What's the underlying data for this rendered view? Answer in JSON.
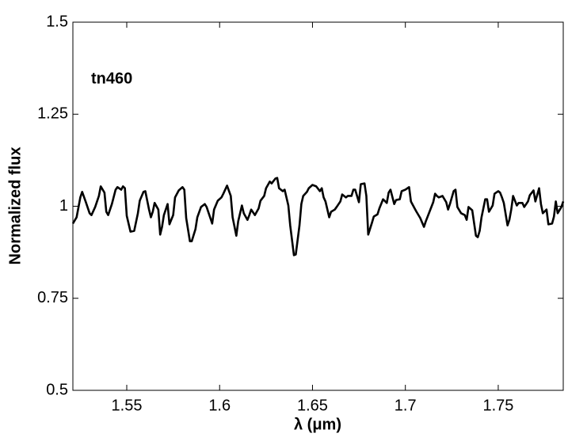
{
  "chart_data": {
    "type": "line",
    "annotation": "tn460",
    "xlabel": "λ (μm)",
    "ylabel": "Normalized flux",
    "xlim": [
      1.521,
      1.785
    ],
    "ylim": [
      0.5,
      1.5
    ],
    "xticks": [
      1.55,
      1.6,
      1.65,
      1.7,
      1.75
    ],
    "yticks": [
      0.5,
      0.75,
      1,
      1.25,
      1.5
    ],
    "x": [
      1.521,
      1.523,
      1.525,
      1.526,
      1.528,
      1.53,
      1.531,
      1.533,
      1.535,
      1.536,
      1.538,
      1.539,
      1.54,
      1.542,
      1.544,
      1.545,
      1.547,
      1.548,
      1.549,
      1.55,
      1.552,
      1.554,
      1.556,
      1.557,
      1.559,
      1.56,
      1.562,
      1.563,
      1.564,
      1.565,
      1.567,
      1.568,
      1.569,
      1.57,
      1.572,
      1.573,
      1.575,
      1.576,
      1.578,
      1.58,
      1.581,
      1.582,
      1.584,
      1.585,
      1.587,
      1.588,
      1.59,
      1.592,
      1.593,
      1.595,
      1.596,
      1.597,
      1.599,
      1.601,
      1.602,
      1.604,
      1.606,
      1.607,
      1.609,
      1.61,
      1.612,
      1.613,
      1.615,
      1.616,
      1.617,
      1.619,
      1.621,
      1.622,
      1.624,
      1.625,
      1.627,
      1.628,
      1.63,
      1.631,
      1.632,
      1.634,
      1.635,
      1.637,
      1.638,
      1.64,
      1.641,
      1.643,
      1.644,
      1.645,
      1.647,
      1.648,
      1.65,
      1.652,
      1.654,
      1.655,
      1.656,
      1.657,
      1.659,
      1.66,
      1.662,
      1.663,
      1.665,
      1.666,
      1.668,
      1.669,
      1.671,
      1.672,
      1.673,
      1.675,
      1.676,
      1.678,
      1.679,
      1.68,
      1.682,
      1.683,
      1.685,
      1.686,
      1.688,
      1.69,
      1.691,
      1.692,
      1.694,
      1.695,
      1.697,
      1.698,
      1.7,
      1.702,
      1.703,
      1.705,
      1.706,
      1.708,
      1.71,
      1.711,
      1.713,
      1.715,
      1.716,
      1.717,
      1.718,
      1.72,
      1.722,
      1.723,
      1.724,
      1.726,
      1.727,
      1.728,
      1.73,
      1.732,
      1.733,
      1.734,
      1.736,
      1.738,
      1.739,
      1.74,
      1.741,
      1.743,
      1.744,
      1.745,
      1.747,
      1.748,
      1.75,
      1.751,
      1.752,
      1.753,
      1.755,
      1.756,
      1.757,
      1.758,
      1.76,
      1.761,
      1.763,
      1.764,
      1.766,
      1.767,
      1.769,
      1.77,
      1.772,
      1.773,
      1.774,
      1.776,
      1.777,
      1.779,
      1.78,
      1.781,
      1.782,
      1.784,
      1.785
    ],
    "series": [
      {
        "color": "#000000",
        "values": [
          0.953,
          0.97,
          1.024,
          1.039,
          1.011,
          0.981,
          0.976,
          0.998,
          1.028,
          1.054,
          1.037,
          0.985,
          0.976,
          1.006,
          1.045,
          1.052,
          1.045,
          1.054,
          1.049,
          0.974,
          0.931,
          0.933,
          0.981,
          1.015,
          1.039,
          1.041,
          0.991,
          0.97,
          0.985,
          1.009,
          0.991,
          0.923,
          0.944,
          0.976,
          1.006,
          0.951,
          0.976,
          1.024,
          1.043,
          1.052,
          1.045,
          0.968,
          0.905,
          0.905,
          0.938,
          0.97,
          0.998,
          1.006,
          0.998,
          0.968,
          0.953,
          0.991,
          1.015,
          1.024,
          1.034,
          1.056,
          1.028,
          0.97,
          0.92,
          0.959,
          1.002,
          0.981,
          0.963,
          0.976,
          0.991,
          0.976,
          0.994,
          1.015,
          1.028,
          1.049,
          1.067,
          1.062,
          1.075,
          1.077,
          1.049,
          1.041,
          1.045,
          1.002,
          0.948,
          0.867,
          0.869,
          0.948,
          1.006,
          1.028,
          1.039,
          1.049,
          1.058,
          1.054,
          1.041,
          1.049,
          1.024,
          1.013,
          0.97,
          0.985,
          0.991,
          0.998,
          1.013,
          1.032,
          1.024,
          1.028,
          1.028,
          1.045,
          1.045,
          1.011,
          1.06,
          1.062,
          1.028,
          0.923,
          0.955,
          0.972,
          0.978,
          0.994,
          1.019,
          1.009,
          1.037,
          1.045,
          1.006,
          1.017,
          1.019,
          1.041,
          1.045,
          1.052,
          1.013,
          0.994,
          0.985,
          0.968,
          0.944,
          0.959,
          0.985,
          1.011,
          1.034,
          1.028,
          1.024,
          1.028,
          1.011,
          0.991,
          1.006,
          1.041,
          1.045,
          0.998,
          0.981,
          0.976,
          0.963,
          0.998,
          0.989,
          0.92,
          0.916,
          0.933,
          0.97,
          1.019,
          1.019,
          0.985,
          1.002,
          1.034,
          1.041,
          1.037,
          1.024,
          1.009,
          0.948,
          0.963,
          0.991,
          1.028,
          1.002,
          1.009,
          1.009,
          0.998,
          1.013,
          1.03,
          1.043,
          1.013,
          1.049,
          1.006,
          0.981,
          0.991,
          0.951,
          0.953,
          0.972,
          1.013,
          0.981,
          0.998,
          1.013
        ]
      }
    ]
  }
}
